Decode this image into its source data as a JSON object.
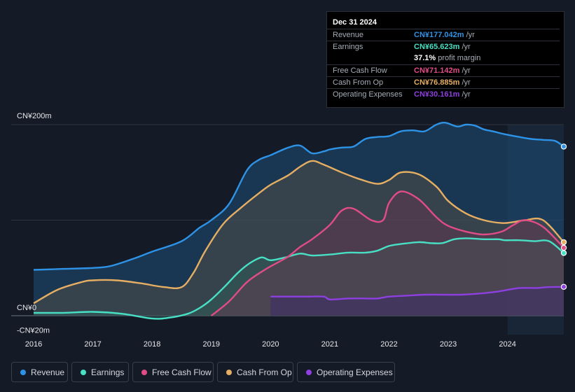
{
  "chart_data": {
    "type": "area",
    "currency_prefix": "CN¥",
    "y_axis": {
      "labels": [
        "CN¥200m",
        "CN¥0",
        "-CN¥20m"
      ],
      "ylim": [
        -20,
        200
      ],
      "gridlines": [
        200,
        100,
        0
      ]
    },
    "x_axis": {
      "ticks": [
        "2016",
        "2017",
        "2018",
        "2019",
        "2020",
        "2021",
        "2022",
        "2023",
        "2024"
      ],
      "xlim": [
        2015.6,
        2025.0
      ]
    },
    "shaded_period_start": 2024.0,
    "series": [
      {
        "name": "Revenue",
        "key": "revenue",
        "color": "#2e93e6",
        "x": [
          2016.0,
          2016.5,
          2017.0,
          2017.3,
          2017.7,
          2018.0,
          2018.5,
          2018.8,
          2019.0,
          2019.3,
          2019.6,
          2019.8,
          2020.0,
          2020.3,
          2020.5,
          2020.7,
          2020.9,
          2021.0,
          2021.2,
          2021.4,
          2021.6,
          2021.8,
          2022.0,
          2022.2,
          2022.4,
          2022.6,
          2022.8,
          2022.95,
          2023.15,
          2023.3,
          2023.45,
          2023.6,
          2023.75,
          2023.95,
          2024.2,
          2024.4,
          2024.6,
          2024.8,
          2024.95
        ],
        "y": [
          48,
          49,
          50,
          52,
          60,
          67,
          78,
          92,
          100,
          117,
          152,
          163,
          168,
          176,
          178,
          170,
          172,
          174,
          176,
          177,
          185,
          187,
          188,
          193,
          194,
          193,
          200,
          202,
          198,
          200,
          199,
          195,
          193,
          190,
          187,
          185,
          184,
          183,
          177
        ],
        "x_start_fill": 2016.0
      },
      {
        "name": "Earnings",
        "key": "earnings",
        "color": "#48e0c4",
        "x": [
          2016.0,
          2016.5,
          2017.0,
          2017.5,
          2018.0,
          2018.3,
          2018.6,
          2018.8,
          2019.0,
          2019.25,
          2019.45,
          2019.65,
          2019.85,
          2020.0,
          2020.25,
          2020.5,
          2020.7,
          2021.0,
          2021.3,
          2021.6,
          2021.8,
          2022.0,
          2022.2,
          2022.5,
          2022.7,
          2022.9,
          2023.1,
          2023.3,
          2023.6,
          2023.85,
          2023.95,
          2024.2,
          2024.45,
          2024.7,
          2024.95
        ],
        "y": [
          3,
          3,
          4,
          2,
          -3,
          -2,
          2,
          8,
          17,
          32,
          45,
          55,
          61,
          58,
          61,
          65,
          63,
          64,
          66,
          66,
          68,
          73,
          75,
          77,
          76,
          76,
          80,
          81,
          80,
          80,
          79,
          79,
          78,
          78,
          65.6
        ]
      },
      {
        "name": "Free Cash Flow",
        "key": "fcf",
        "color": "#e04c86",
        "x": [
          2019.0,
          2019.3,
          2019.6,
          2019.9,
          2020.1,
          2020.3,
          2020.5,
          2020.7,
          2021.0,
          2021.2,
          2021.4,
          2021.7,
          2021.9,
          2022.0,
          2022.2,
          2022.5,
          2022.8,
          2023.0,
          2023.3,
          2023.6,
          2023.9,
          2024.1,
          2024.3,
          2024.6,
          2024.95
        ],
        "y": [
          0,
          15,
          35,
          48,
          55,
          62,
          72,
          80,
          95,
          110,
          112,
          100,
          100,
          118,
          130,
          122,
          103,
          94,
          88,
          85,
          88,
          95,
          100,
          93,
          71.1
        ]
      },
      {
        "name": "Cash From Op",
        "key": "cfo",
        "color": "#e6ae62",
        "x": [
          2016.0,
          2016.4,
          2016.8,
          2017.0,
          2017.4,
          2017.8,
          2018.2,
          2018.5,
          2018.7,
          2018.9,
          2019.2,
          2019.5,
          2019.8,
          2020.0,
          2020.3,
          2020.5,
          2020.7,
          2020.9,
          2021.2,
          2021.5,
          2021.8,
          2022.0,
          2022.2,
          2022.5,
          2022.8,
          2023.0,
          2023.3,
          2023.6,
          2023.9,
          2024.1,
          2024.3,
          2024.6,
          2024.95
        ],
        "y": [
          13,
          27,
          35,
          37,
          37,
          34,
          30,
          30,
          45,
          68,
          96,
          113,
          128,
          137,
          147,
          156,
          162,
          158,
          150,
          143,
          138,
          142,
          150,
          148,
          135,
          120,
          107,
          100,
          97,
          98,
          100,
          100,
          76.9
        ]
      },
      {
        "name": "Operating Expenses",
        "key": "opex",
        "color": "#8e3fdf",
        "x": [
          2020.0,
          2020.3,
          2020.6,
          2020.9,
          2021.0,
          2021.3,
          2021.6,
          2021.8,
          2022.0,
          2022.3,
          2022.6,
          2022.9,
          2023.2,
          2023.5,
          2023.8,
          2024.0,
          2024.2,
          2024.5,
          2024.7,
          2024.95
        ],
        "y": [
          20,
          20,
          20,
          20,
          17,
          18,
          18,
          18,
          20,
          21,
          22,
          22,
          22,
          23,
          25,
          27,
          29,
          29,
          30,
          30.2
        ]
      }
    ]
  },
  "tooltip": {
    "date": "Dec 31 2024",
    "rows": [
      {
        "label": "Revenue",
        "value": "CN¥177.042m",
        "unit": " /yr",
        "color": "#2e93e6"
      },
      {
        "label": "Earnings",
        "value": "CN¥65.623m",
        "unit": " /yr",
        "color": "#48e0c4"
      },
      {
        "label": "",
        "value": "37.1%",
        "unit": " profit margin",
        "color": "#ffffff"
      },
      {
        "label": "Free Cash Flow",
        "value": "CN¥71.142m",
        "unit": " /yr",
        "color": "#e04c86"
      },
      {
        "label": "Cash From Op",
        "value": "CN¥76.885m",
        "unit": " /yr",
        "color": "#e6ae62"
      },
      {
        "label": "Operating Expenses",
        "value": "CN¥30.161m",
        "unit": " /yr",
        "color": "#8e3fdf"
      }
    ]
  },
  "legend": [
    {
      "label": "Revenue",
      "color": "#2e93e6"
    },
    {
      "label": "Earnings",
      "color": "#48e0c4"
    },
    {
      "label": "Free Cash Flow",
      "color": "#e04c86"
    },
    {
      "label": "Cash From Op",
      "color": "#e6ae62"
    },
    {
      "label": "Operating Expenses",
      "color": "#8e3fdf"
    }
  ]
}
